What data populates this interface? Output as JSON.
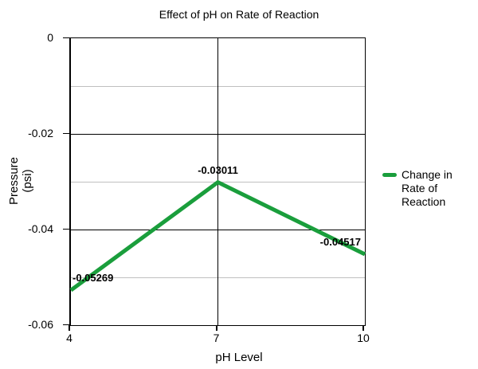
{
  "chart_data": {
    "type": "line",
    "title": "Effect of pH on Rate of Reaction",
    "xlabel": "pH Level",
    "ylabel": "Pressure (psi)",
    "x": [
      4,
      7,
      10
    ],
    "x_tick_labels": [
      "4",
      "7",
      "10"
    ],
    "xlim": [
      4,
      10
    ],
    "ylim": [
      -0.06,
      0
    ],
    "y_major_ticks": [
      0,
      -0.02,
      -0.04,
      -0.06
    ],
    "y_major_tick_labels": [
      "0",
      "-0.02",
      "-0.04",
      "-0.06"
    ],
    "y_minor_ticks": [
      -0.01,
      -0.03,
      -0.05
    ],
    "x_grid_values": [
      7
    ],
    "grid": "horizontal major lines black, horizontal minor lines gray, vertical line at x=7, full black plot border",
    "legend_position": "right",
    "series": [
      {
        "name": "Change in Rate of Reaction",
        "color": "#1A9E3C",
        "values": [
          -0.05269,
          -0.03011,
          -0.04517
        ],
        "point_labels": [
          "-0.05269",
          "-0.03011",
          "-0.04517"
        ]
      }
    ],
    "colors": {
      "background": "#ffffff",
      "axis": "#000000",
      "major_grid": "#000000",
      "minor_grid": "#c0c0c0",
      "text": "#000000"
    }
  }
}
